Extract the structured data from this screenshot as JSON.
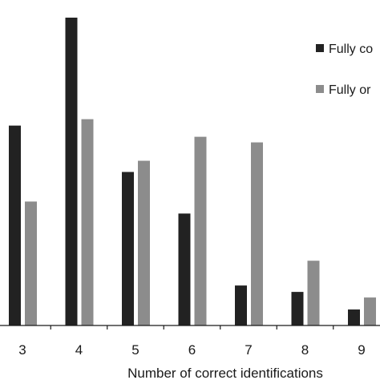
{
  "chart_data": {
    "type": "bar",
    "categories": [
      "3",
      "4",
      "5",
      "6",
      "7",
      "8",
      "9"
    ],
    "series": [
      {
        "name": "Fully co",
        "color": "#222222",
        "values": [
          250,
          385,
          192,
          140,
          50,
          42,
          20
        ]
      },
      {
        "name": "Fully or",
        "color": "#8c8c8c",
        "values": [
          155,
          258,
          206,
          236,
          229,
          81,
          35
        ]
      }
    ],
    "title": "",
    "xlabel": "Number of correct identifications",
    "ylabel": "",
    "ylim": [
      0,
      400
    ],
    "grid": false,
    "legend_position": "top-right"
  }
}
